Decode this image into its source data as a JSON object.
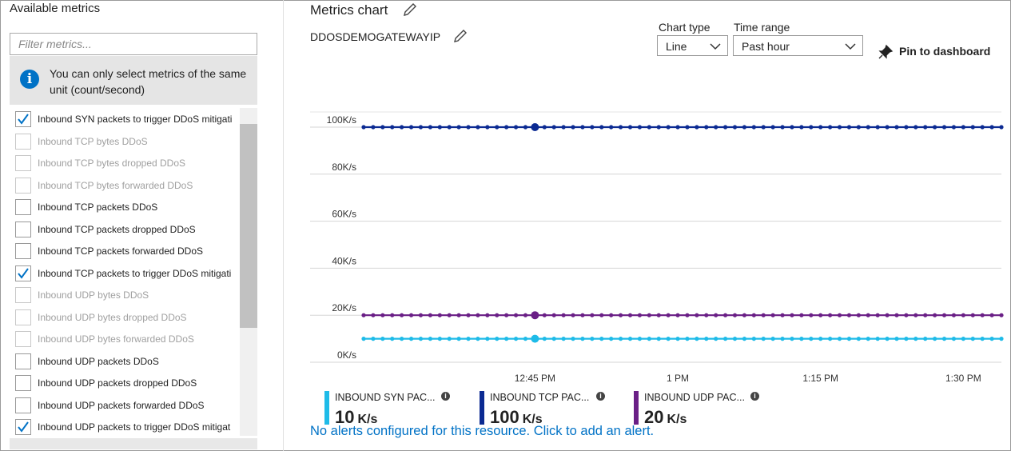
{
  "left_panel": {
    "title": "Available metrics",
    "filter_placeholder": "Filter metrics...",
    "info": "You can only select metrics of the same unit (count/second)",
    "metrics": [
      {
        "name": "Inbound SYN packets to trigger DDoS mitigati",
        "checked": true,
        "disabled": false
      },
      {
        "name": "Inbound TCP bytes DDoS",
        "checked": false,
        "disabled": true
      },
      {
        "name": "Inbound TCP bytes dropped DDoS",
        "checked": false,
        "disabled": true
      },
      {
        "name": "Inbound TCP bytes forwarded DDoS",
        "checked": false,
        "disabled": true
      },
      {
        "name": "Inbound TCP packets DDoS",
        "checked": false,
        "disabled": false
      },
      {
        "name": "Inbound TCP packets dropped DDoS",
        "checked": false,
        "disabled": false
      },
      {
        "name": "Inbound TCP packets forwarded DDoS",
        "checked": false,
        "disabled": false
      },
      {
        "name": "Inbound TCP packets to trigger DDoS mitigati",
        "checked": true,
        "disabled": false
      },
      {
        "name": "Inbound UDP bytes DDoS",
        "checked": false,
        "disabled": true
      },
      {
        "name": "Inbound UDP bytes dropped DDoS",
        "checked": false,
        "disabled": true
      },
      {
        "name": "Inbound UDP bytes forwarded DDoS",
        "checked": false,
        "disabled": true
      },
      {
        "name": "Inbound UDP packets DDoS",
        "checked": false,
        "disabled": false
      },
      {
        "name": "Inbound UDP packets dropped DDoS",
        "checked": false,
        "disabled": false
      },
      {
        "name": "Inbound UDP packets forwarded DDoS",
        "checked": false,
        "disabled": false
      },
      {
        "name": "Inbound UDP packets to trigger DDoS mitigat",
        "checked": true,
        "disabled": false
      }
    ]
  },
  "header": {
    "title": "Metrics chart",
    "resource": "DDOSDEMOGATEWAYIP",
    "chart_type_label": "Chart type",
    "chart_type": "Line",
    "time_range_label": "Time range",
    "time_range": "Past hour",
    "pin": "Pin to dashboard"
  },
  "chart_data": {
    "type": "line",
    "categories": [
      null,
      null,
      null,
      null,
      null,
      null,
      null,
      null,
      null,
      null,
      null,
      null,
      null,
      null,
      null,
      null,
      null,
      null,
      "12:45 PM",
      null,
      null,
      null,
      null,
      null,
      null,
      null,
      null,
      null,
      null,
      null,
      null,
      null,
      null,
      "1 PM",
      null,
      null,
      null,
      null,
      null,
      null,
      null,
      null,
      null,
      null,
      null,
      null,
      null,
      null,
      "1:15 PM",
      null,
      null,
      null,
      null,
      null,
      null,
      null,
      null,
      null,
      null,
      null,
      null,
      null,
      null,
      "1:30 PM",
      null,
      null,
      null,
      null
    ],
    "ylim": [
      0,
      100000
    ],
    "yticks": [
      {
        "value": 0,
        "label": "0K/s"
      },
      {
        "value": 20000,
        "label": "20K/s"
      },
      {
        "value": 40000,
        "label": "40K/s"
      },
      {
        "value": 60000,
        "label": "60K/s"
      },
      {
        "value": 80000,
        "label": "80K/s"
      },
      {
        "value": 100000,
        "label": "100K/s"
      }
    ],
    "grid": true,
    "series": [
      {
        "name": "INBOUND SYN PAC...",
        "color": "#1ebbe8",
        "summary": 10,
        "summary_unit": "K/s",
        "values": [
          10000,
          10000,
          10000,
          10000,
          10000,
          10000,
          10000,
          10000,
          10000,
          10000,
          10000,
          10000,
          10000,
          10000,
          10000,
          10000,
          10000,
          10000,
          10000,
          10000,
          10000,
          10000,
          10000,
          10000,
          10000,
          10000,
          10000,
          10000,
          10000,
          10000,
          10000,
          10000,
          10000,
          10000,
          10000,
          10000,
          10000,
          10000,
          10000,
          10000,
          10000,
          10000,
          10000,
          10000,
          10000,
          10000,
          10000,
          10000,
          10000,
          10000,
          10000,
          10000,
          10000,
          10000,
          10000,
          10000,
          10000,
          10000,
          10000,
          10000,
          10000,
          10000,
          10000,
          10000,
          10000,
          10000,
          10000,
          10000
        ]
      },
      {
        "name": "INBOUND TCP PAC...",
        "color": "#0b2a92",
        "summary": 100,
        "summary_unit": "K/s",
        "values": [
          100000,
          100000,
          100000,
          100000,
          100000,
          100000,
          100000,
          100000,
          100000,
          100000,
          100000,
          100000,
          100000,
          100000,
          100000,
          100000,
          100000,
          100000,
          100000,
          100000,
          100000,
          100000,
          100000,
          100000,
          100000,
          100000,
          100000,
          100000,
          100000,
          100000,
          100000,
          100000,
          100000,
          100000,
          100000,
          100000,
          100000,
          100000,
          100000,
          100000,
          100000,
          100000,
          100000,
          100000,
          100000,
          100000,
          100000,
          100000,
          100000,
          100000,
          100000,
          100000,
          100000,
          100000,
          100000,
          100000,
          100000,
          100000,
          100000,
          100000,
          100000,
          100000,
          100000,
          100000,
          100000,
          100000,
          100000,
          100000
        ]
      },
      {
        "name": "INBOUND UDP PAC...",
        "color": "#6a1f86",
        "summary": 20,
        "summary_unit": "K/s",
        "values": [
          20000,
          20000,
          20000,
          20000,
          20000,
          20000,
          20000,
          20000,
          20000,
          20000,
          20000,
          20000,
          20000,
          20000,
          20000,
          20000,
          20000,
          20000,
          20000,
          20000,
          20000,
          20000,
          20000,
          20000,
          20000,
          20000,
          20000,
          20000,
          20000,
          20000,
          20000,
          20000,
          20000,
          20000,
          20000,
          20000,
          20000,
          20000,
          20000,
          20000,
          20000,
          20000,
          20000,
          20000,
          20000,
          20000,
          20000,
          20000,
          20000,
          20000,
          20000,
          20000,
          20000,
          20000,
          20000,
          20000,
          20000,
          20000,
          20000,
          20000,
          20000,
          20000,
          20000,
          20000,
          20000,
          20000,
          20000,
          20000
        ]
      }
    ]
  },
  "footer": {
    "alert_link": "No alerts configured for this resource. Click to add an alert."
  }
}
